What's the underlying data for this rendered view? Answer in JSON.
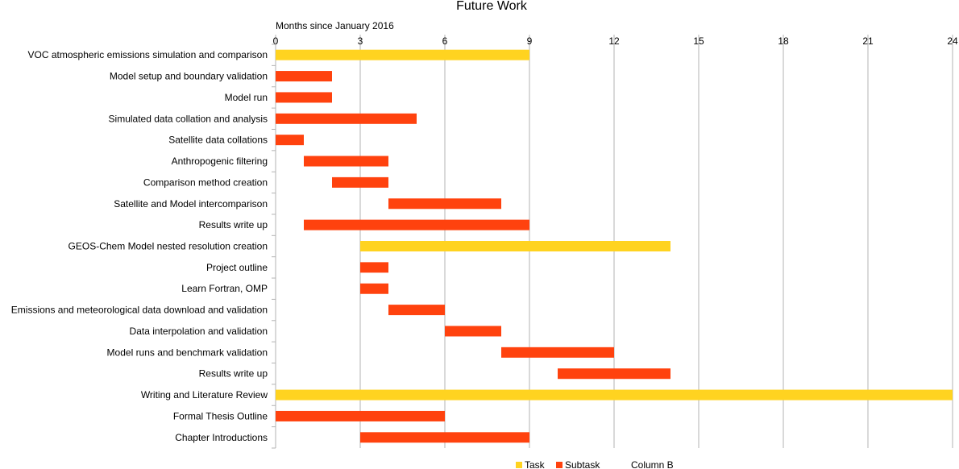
{
  "chart_data": {
    "type": "bar",
    "orientation": "horizontal-gantt",
    "title": "Future Work",
    "xlabel": "Months since January 2016",
    "xlim": [
      0,
      24
    ],
    "xticks": [
      0,
      3,
      6,
      9,
      12,
      15,
      18,
      21,
      24
    ],
    "grid": true,
    "legend_position": "bottom",
    "colors": {
      "Task": "#ffd320",
      "Subtask": "#ff420e"
    },
    "legend": [
      {
        "name": "Task",
        "color": "#ffd320",
        "show_swatch": true
      },
      {
        "name": "Subtask",
        "color": "#ff420e",
        "show_swatch": true
      },
      {
        "name": "Column B",
        "color": "",
        "show_swatch": false
      }
    ],
    "rows": [
      {
        "label": "VOC atmospheric emissions simulation and comparison",
        "type": "Task",
        "start": 0,
        "end": 9
      },
      {
        "label": "Model setup and boundary validation",
        "type": "Subtask",
        "start": 0,
        "end": 2
      },
      {
        "label": "Model run",
        "type": "Subtask",
        "start": 0,
        "end": 2
      },
      {
        "label": "Simulated data collation and analysis",
        "type": "Subtask",
        "start": 0,
        "end": 5
      },
      {
        "label": "Satellite data collations",
        "type": "Subtask",
        "start": 0,
        "end": 1
      },
      {
        "label": "Anthropogenic filtering",
        "type": "Subtask",
        "start": 1,
        "end": 4
      },
      {
        "label": "Comparison method creation",
        "type": "Subtask",
        "start": 2,
        "end": 4
      },
      {
        "label": "Satellite and Model intercomparison",
        "type": "Subtask",
        "start": 4,
        "end": 8
      },
      {
        "label": "Results write up",
        "type": "Subtask",
        "start": 1,
        "end": 9
      },
      {
        "label": "GEOS-Chem Model nested resolution creation",
        "type": "Task",
        "start": 3,
        "end": 14
      },
      {
        "label": "Project outline",
        "type": "Subtask",
        "start": 3,
        "end": 4
      },
      {
        "label": "Learn Fortran, OMP",
        "type": "Subtask",
        "start": 3,
        "end": 4
      },
      {
        "label": "Emissions and meteorological data download and validation",
        "type": "Subtask",
        "start": 4,
        "end": 6
      },
      {
        "label": "Data interpolation and validation",
        "type": "Subtask",
        "start": 6,
        "end": 8
      },
      {
        "label": "Model runs and benchmark validation",
        "type": "Subtask",
        "start": 8,
        "end": 12
      },
      {
        "label": "Results write up",
        "type": "Subtask",
        "start": 10,
        "end": 14
      },
      {
        "label": "Writing and Literature Review",
        "type": "Task",
        "start": 0,
        "end": 24
      },
      {
        "label": "Formal Thesis Outline",
        "type": "Subtask",
        "start": 0,
        "end": 6
      },
      {
        "label": "Chapter Introductions",
        "type": "Subtask",
        "start": 3,
        "end": 9
      }
    ]
  }
}
